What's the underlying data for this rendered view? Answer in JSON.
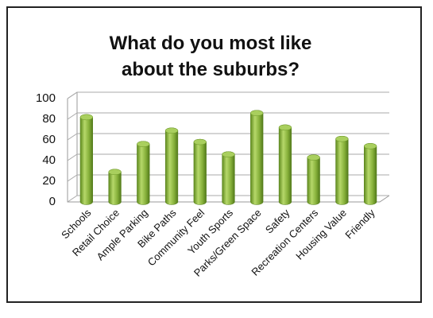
{
  "chart_data": {
    "type": "bar",
    "title": "What do you most like about the suburbs?",
    "categories": [
      "Schools",
      "Retail Choice",
      "Ample Parking",
      "Bike Paths",
      "Community Feel",
      "Youth Sports",
      "Parks/Green Space",
      "Safety",
      "Recreation Centers",
      "Housing Value",
      "Friendly"
    ],
    "values": [
      82,
      29,
      56,
      69,
      58,
      46,
      86,
      72,
      43,
      61,
      54
    ],
    "color": "#8db83f",
    "ylim": [
      0,
      100
    ],
    "yticks": [
      0,
      20,
      40,
      60,
      80,
      100
    ],
    "grid": true
  }
}
